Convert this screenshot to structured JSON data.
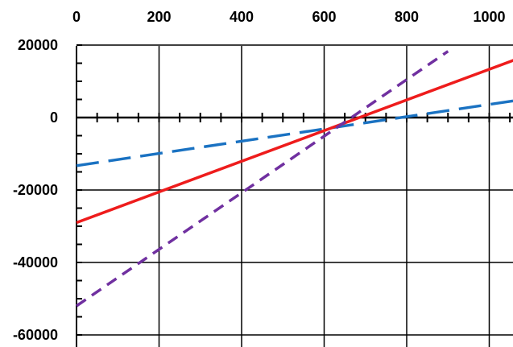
{
  "chart_data": {
    "type": "line",
    "title": "",
    "xlabel": "",
    "ylabel": "",
    "xlim": [
      -10,
      1075
    ],
    "ylim": [
      -62000,
      20000
    ],
    "x_ticks": [
      0,
      200,
      400,
      600,
      800,
      1000
    ],
    "x_tick_labels": [
      "0",
      "200",
      "400",
      "600",
      "800",
      "1000"
    ],
    "y_ticks": [
      20000,
      0,
      -20000,
      -40000,
      -60000
    ],
    "y_tick_labels": [
      "20000",
      "0",
      "-20000",
      "-40000",
      "-60000"
    ],
    "x_axis_labels_position": "top",
    "grid": true,
    "series": [
      {
        "color": "#1a72c2",
        "style": "dashed",
        "x": [
          0,
          1075
        ],
        "y": [
          -13300,
          4900
        ]
      },
      {
        "color": "#ee1c1c",
        "style": "solid",
        "x": [
          0,
          1075
        ],
        "y": [
          -29000,
          16500
        ]
      },
      {
        "color": "#7030a0",
        "style": "dashed",
        "x": [
          0,
          900
        ],
        "y": [
          -52000,
          18300
        ]
      }
    ]
  }
}
